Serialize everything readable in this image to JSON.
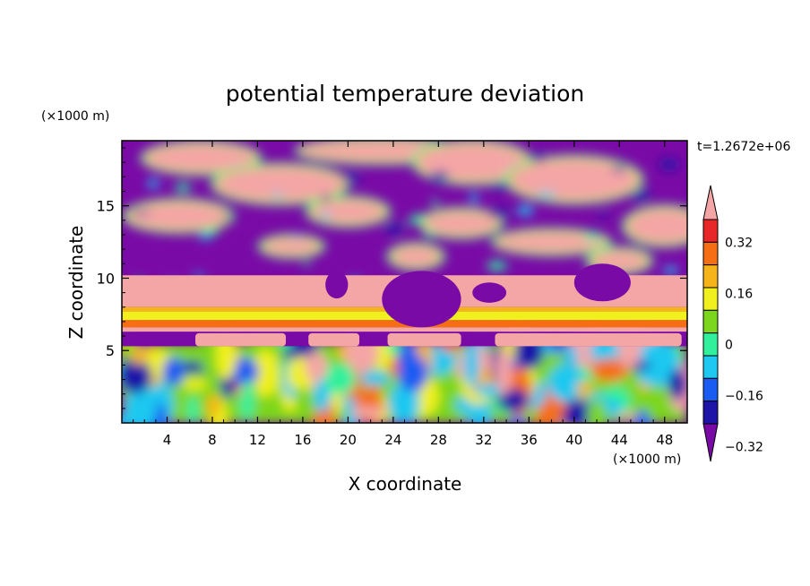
{
  "chart_data": {
    "type": "heatmap",
    "title": "potential temperature deviation",
    "xlabel": "X coordinate",
    "ylabel": "Z coordinate",
    "x_unit": "(×1000 m)",
    "y_unit": "(×1000 m)",
    "time_label": "t=1.2672e+06",
    "xlim": [
      0,
      50
    ],
    "ylim": [
      0,
      19.5
    ],
    "x_ticks": [
      4,
      8,
      12,
      16,
      20,
      24,
      28,
      32,
      36,
      40,
      44,
      48
    ],
    "x_tick_labels": [
      "4",
      "8",
      "12",
      "16",
      "20",
      "24",
      "28",
      "32",
      "36",
      "40",
      "44",
      "48"
    ],
    "y_ticks": [
      5,
      10,
      15
    ],
    "y_tick_labels": [
      "5",
      "10",
      "15"
    ],
    "colorbar": {
      "levels": [
        -0.4,
        -0.32,
        -0.24,
        -0.16,
        -0.08,
        0,
        0.08,
        0.16,
        0.24,
        0.32,
        0.4
      ],
      "labels": [
        "0.32",
        "0.16",
        "0",
        "−0.16",
        "−0.32"
      ],
      "label_values": [
        0.32,
        0.16,
        0,
        -0.16,
        -0.32
      ],
      "colors": [
        "#7a0aa6",
        "#1e14a8",
        "#1a5cf2",
        "#1ec8f0",
        "#30f09c",
        "#7cd61e",
        "#f0f01e",
        "#f5b419",
        "#f56e14",
        "#e82828",
        "#f4a6a6"
      ],
      "extend": "both"
    },
    "bands": [
      {
        "z_range": [
          0,
          5.5
        ],
        "character": "mixed small-amplitude eddies, values mostly between -0.32 and 0.4"
      },
      {
        "z_range": [
          5.5,
          6.5
        ],
        "character": "alternating -0.4 and 0.4 cells"
      },
      {
        "z_range": [
          6.5,
          8
        ],
        "character": "horizontal layers 0.16 to 0.4"
      },
      {
        "z_range": [
          8,
          19.5
        ],
        "character": "large patches saturated at -0.4 and +0.4"
      }
    ]
  }
}
